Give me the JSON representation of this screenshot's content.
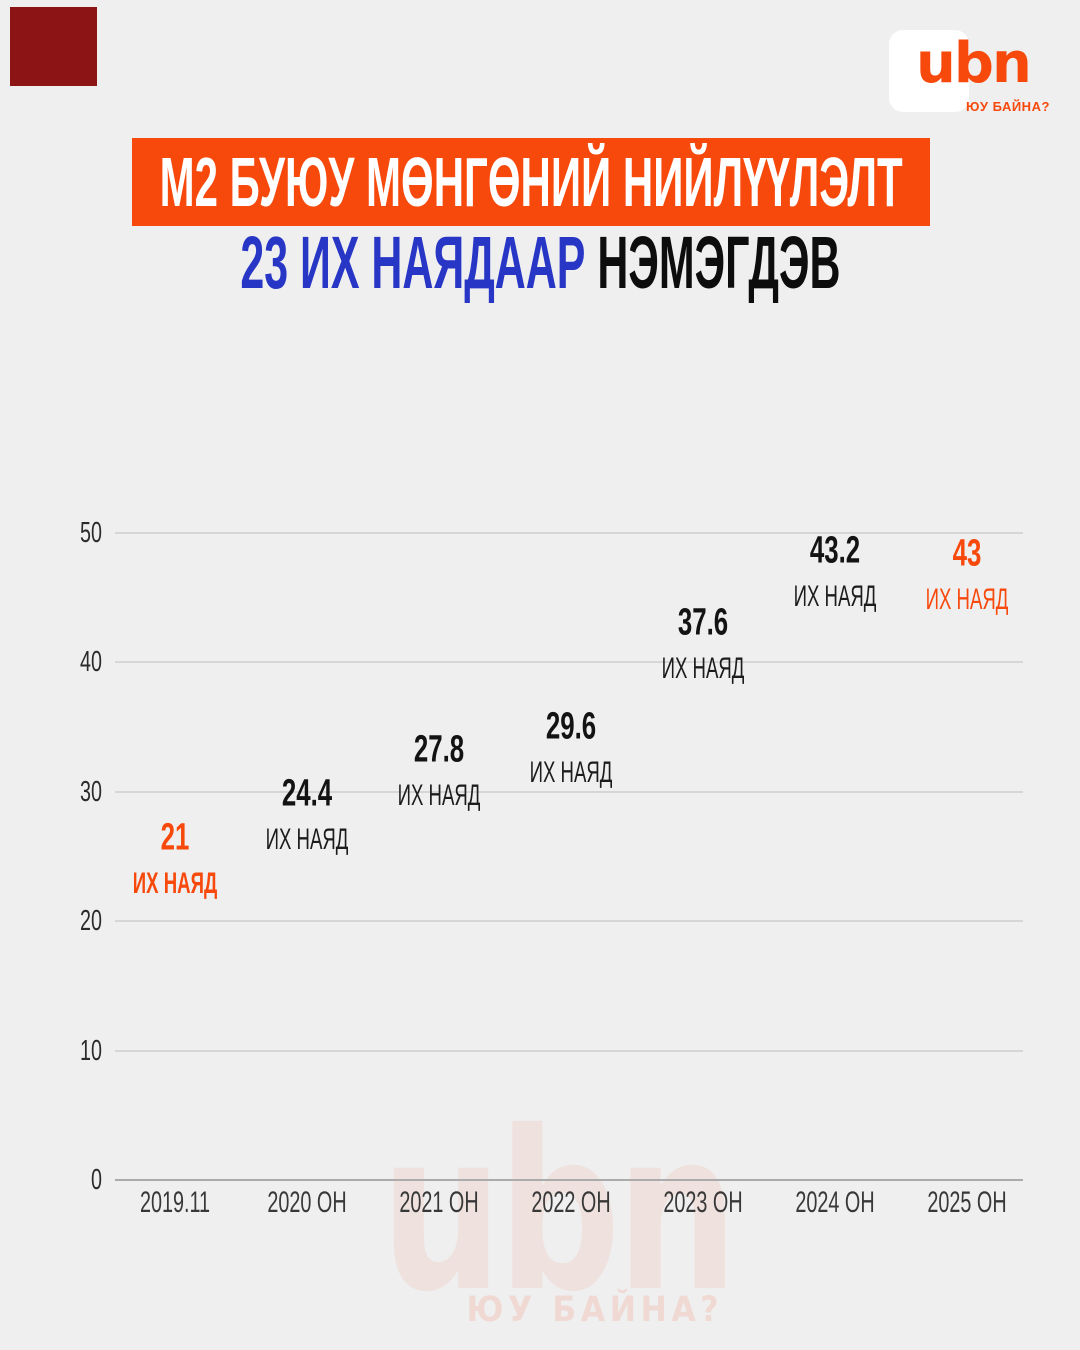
{
  "page": {
    "background": "#efeff0"
  },
  "decor": {
    "corner_square_color": "#8c1414"
  },
  "logo": {
    "text": "ubn",
    "tagline": "ЮУ БАЙНА?",
    "accent_color": "#f7490c"
  },
  "header": {
    "title": "М2 БУЮУ МӨНГӨНИЙ НИЙЛҮҮЛЭЛТ",
    "subtitle_highlight": "23 ИХ НАЯДААР",
    "subtitle_rest": " НЭМЭГДЭВ",
    "banner_color": "#f7490c",
    "subtitle_highlight_color": "#2836c6",
    "subtitle_rest_color": "#0d0d0d"
  },
  "chart_data": {
    "type": "line",
    "style": "labels_only",
    "title": "М2 БУЮУ МӨНГӨНИЙ НИЙЛҮҮЛЭЛТ 23 ИХ НАЯДААР НЭМЭГДЭВ",
    "categories": [
      "2019.11",
      "2020 ОН",
      "2021 ОН",
      "2022 ОН",
      "2023 ОН",
      "2024 ОН",
      "2025 ОН"
    ],
    "values": [
      21,
      24.4,
      27.8,
      29.6,
      37.6,
      43.2,
      43
    ],
    "value_labels": [
      "21",
      "24.4",
      "27.8",
      "29.6",
      "37.6",
      "43.2",
      "43"
    ],
    "unit_label": "ИХ НАЯД",
    "xlabel": "",
    "ylabel": "",
    "ylim": [
      0,
      50
    ],
    "yticks": [
      0,
      10,
      20,
      30,
      40,
      50
    ],
    "grid": true,
    "legend": "none",
    "default_label_color": "#131313",
    "highlight_color": "#f7490c",
    "highlights": [
      {
        "index": 0,
        "bold_unit": true
      },
      {
        "index": 6,
        "bold_unit": false
      }
    ]
  },
  "watermark": {
    "text": "ubn",
    "tagline": "ЮУ БАЙНА?"
  }
}
